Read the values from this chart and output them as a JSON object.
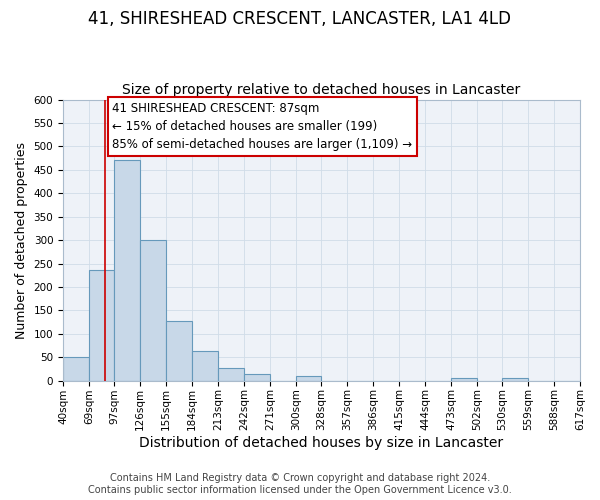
{
  "title": "41, SHIRESHEAD CRESCENT, LANCASTER, LA1 4LD",
  "subtitle": "Size of property relative to detached houses in Lancaster",
  "xlabel": "Distribution of detached houses by size in Lancaster",
  "ylabel": "Number of detached properties",
  "bin_labels": [
    "40sqm",
    "69sqm",
    "97sqm",
    "126sqm",
    "155sqm",
    "184sqm",
    "213sqm",
    "242sqm",
    "271sqm",
    "300sqm",
    "328sqm",
    "357sqm",
    "386sqm",
    "415sqm",
    "444sqm",
    "473sqm",
    "502sqm",
    "530sqm",
    "559sqm",
    "588sqm",
    "617sqm"
  ],
  "bin_edges": [
    40,
    69,
    97,
    126,
    155,
    184,
    213,
    242,
    271,
    300,
    328,
    357,
    386,
    415,
    444,
    473,
    502,
    530,
    559,
    588,
    617
  ],
  "bar_values": [
    50,
    237,
    470,
    300,
    128,
    63,
    28,
    15,
    0,
    10,
    0,
    0,
    0,
    0,
    0,
    5,
    0,
    5,
    0,
    0
  ],
  "bar_color": "#c8d8e8",
  "bar_edge_color": "#6699bb",
  "property_line_x": 87,
  "vline_color": "#cc0000",
  "ylim": [
    0,
    600
  ],
  "yticks": [
    0,
    50,
    100,
    150,
    200,
    250,
    300,
    350,
    400,
    450,
    500,
    550,
    600
  ],
  "annotation_title": "41 SHIRESHEAD CRESCENT: 87sqm",
  "annotation_line1": "← 15% of detached houses are smaller (199)",
  "annotation_line2": "85% of semi-detached houses are larger (1,109) →",
  "annotation_box_facecolor": "#ffffff",
  "annotation_box_edgecolor": "#cc0000",
  "grid_color": "#d0dce8",
  "plot_bg_color": "#eef2f8",
  "footer1": "Contains HM Land Registry data © Crown copyright and database right 2024.",
  "footer2": "Contains public sector information licensed under the Open Government Licence v3.0.",
  "title_fontsize": 12,
  "subtitle_fontsize": 10,
  "xlabel_fontsize": 10,
  "ylabel_fontsize": 9,
  "tick_fontsize": 7.5,
  "annotation_fontsize": 8.5,
  "footer_fontsize": 7
}
